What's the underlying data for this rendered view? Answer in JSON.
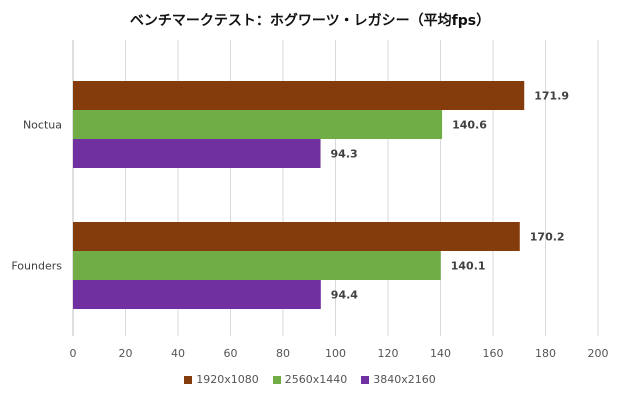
{
  "chart_data": {
    "type": "bar",
    "orientation": "horizontal",
    "title": "ベンチマークテスト：ホグワーツ・レガシー（平均fps）",
    "categories": [
      "Noctua",
      "Founders"
    ],
    "series": [
      {
        "name": "1920x1080",
        "color": "#843C0C",
        "values": [
          171.9,
          170.2
        ]
      },
      {
        "name": "2560x1440",
        "color": "#70AD47",
        "values": [
          140.6,
          140.1
        ]
      },
      {
        "name": "3840x2160",
        "color": "#7030A0",
        "values": [
          94.3,
          94.4
        ]
      }
    ],
    "xlim": [
      0,
      200
    ],
    "xticks": [
      0,
      20,
      40,
      60,
      80,
      100,
      120,
      140,
      160,
      180,
      200
    ],
    "grid": true,
    "legend_position": "bottom"
  }
}
